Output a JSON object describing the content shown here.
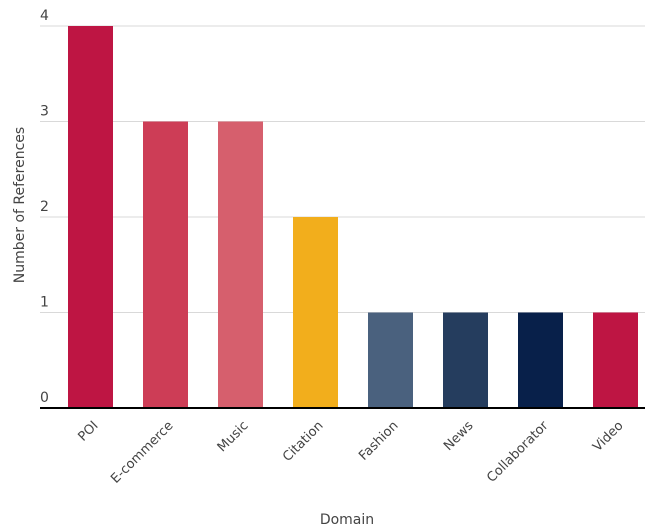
{
  "chart_data": {
    "type": "bar",
    "title": "",
    "xlabel": "Domain",
    "ylabel": "Number of References",
    "categories": [
      "POI",
      "E-commerce",
      "Music",
      "Citation",
      "Fashion",
      "News",
      "Collaborator",
      "Video"
    ],
    "values": [
      4,
      3,
      3,
      2,
      1,
      1,
      1,
      1
    ],
    "colors": [
      "#be1543",
      "#cd3d56",
      "#d65f6d",
      "#f2ae1c",
      "#4a617e",
      "#253d5e",
      "#08204a",
      "#be1543"
    ],
    "ylim": [
      0,
      4
    ],
    "yticks": [
      0,
      1,
      2,
      3,
      4
    ],
    "grid": true,
    "legend": "none"
  }
}
